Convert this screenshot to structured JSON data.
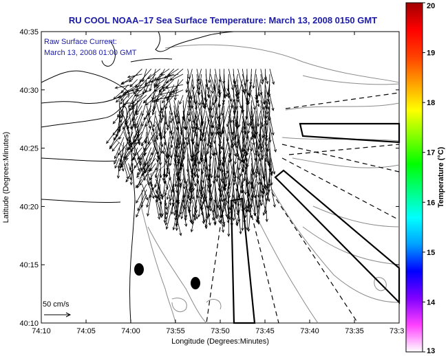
{
  "chart_data": {
    "type": "vector-field-map",
    "title": "RU COOL  NOAA–17  Sea Surface Temperature:  March 13, 2008 0150 GMT",
    "inset_text": [
      "Raw Surface Current:",
      "March 13, 2008 01:00 GMT"
    ],
    "xlabel": "Longitude (Degrees:Minutes)",
    "ylabel": "Latitude (Degrees:Minutes)",
    "x_ticks": [
      "74:10",
      "74:05",
      "74:00",
      "73:55",
      "73:50",
      "73:45",
      "73:40",
      "73:35",
      "73:3"
    ],
    "x_tick_values": [
      -74.1667,
      -74.0833,
      -74.0,
      -73.9167,
      -73.8333,
      -73.75,
      -73.6667,
      -73.5833,
      -73.5
    ],
    "y_ticks": [
      "40:35",
      "40:30",
      "40:25",
      "40:20",
      "40:15",
      "40:10"
    ],
    "y_tick_values": [
      40.5833,
      40.5,
      40.4167,
      40.3333,
      40.25,
      40.1667
    ],
    "xlim": [
      -74.1667,
      -73.5
    ],
    "ylim": [
      40.1667,
      40.5833
    ],
    "scale_label": "50 cm/s",
    "scale_value_cm_s": 50,
    "colorbar": {
      "label": "Temperature (°C)",
      "min": 13,
      "max": 20,
      "ticks": [
        "13",
        "14",
        "15",
        "16",
        "17",
        "18",
        "19",
        "20"
      ],
      "colors": [
        "#ffffff",
        "#ff40ff",
        "#8000ff",
        "#0000ff",
        "#00a0ff",
        "#00ffff",
        "#00ff80",
        "#00ff00",
        "#80ff00",
        "#ffff00",
        "#ffa000",
        "#ff4000",
        "#ff0000",
        "#a00000"
      ]
    },
    "current_field": {
      "lon_range": [
        -74.03,
        -73.74
      ],
      "lat_range": [
        40.33,
        40.53
      ],
      "mean_direction": "southward",
      "typical_speed_cm_s": 40
    },
    "features": [
      "coastline",
      "bathymetry contours",
      "shipping channel lanes",
      "buoy markers"
    ]
  },
  "colors": {
    "title": "#1a1aa6",
    "inset": "#1a1aa6",
    "axis": "#000000",
    "contour": "#808080",
    "coast": "#000000"
  }
}
